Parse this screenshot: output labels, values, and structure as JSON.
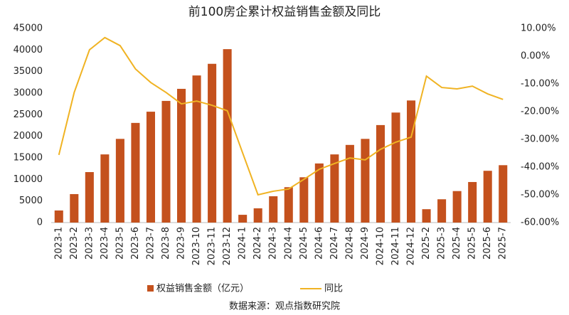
{
  "chart_data": {
    "type": "bar_line",
    "title": "前100房企累计权益销售金额及同比",
    "categories": [
      "2023-1",
      "2023-2",
      "2023-3",
      "2023-4",
      "2023-5",
      "2023-6",
      "2023-7",
      "2023-8",
      "2023-9",
      "2023-10",
      "2023-11",
      "2023-12",
      "2024-1",
      "2024-2",
      "2024-3",
      "2024-4",
      "2024-5",
      "2024-6",
      "2024-7",
      "2024-8",
      "2024-9",
      "2024-10",
      "2024-11",
      "2024-12",
      "2025-2",
      "2025-3",
      "2025-4",
      "2025-5",
      "2025-6",
      "2025-7"
    ],
    "series": [
      {
        "name": "权益销售金额（亿元）",
        "type": "bar",
        "axis": "y",
        "color": "#c4511d",
        "values": [
          2800,
          6600,
          11700,
          15800,
          19400,
          23100,
          25700,
          28200,
          31000,
          34100,
          36800,
          40200,
          1800,
          3300,
          6100,
          8200,
          10500,
          13700,
          15800,
          18000,
          19400,
          22600,
          25500,
          28300,
          3100,
          5400,
          7300,
          9400,
          12000,
          13300
        ]
      },
      {
        "name": "同比",
        "type": "line",
        "axis": "y2",
        "color": "#f0b323",
        "values": [
          -35.6,
          -13.1,
          2.3,
          6.7,
          3.8,
          -4.6,
          -9.5,
          -13.1,
          -17.2,
          -16.2,
          -17.7,
          -19.7,
          -34.9,
          -50.0,
          -48.7,
          -47.9,
          -44.4,
          -40.8,
          -38.7,
          -36.7,
          -37.4,
          -33.6,
          -31.0,
          -29.2,
          -7.2,
          -11.3,
          -11.8,
          -10.8,
          -13.6,
          -15.6
        ]
      }
    ],
    "ylim": [
      0,
      45000
    ],
    "yticks": [
      0,
      5000,
      10000,
      15000,
      20000,
      25000,
      30000,
      35000,
      40000,
      45000
    ],
    "y2lim": [
      -60,
      10
    ],
    "y2ticks": [
      {
        "value": -60,
        "label": "-60.00%"
      },
      {
        "value": -50,
        "label": "-50.00%"
      },
      {
        "value": -40,
        "label": "-40.00%"
      },
      {
        "value": -30,
        "label": "-30.00%"
      },
      {
        "value": -20,
        "label": "-20.00%"
      },
      {
        "value": -10,
        "label": "-10.00%"
      },
      {
        "value": 0,
        "label": "0.00%"
      },
      {
        "value": 10,
        "label": "10.00%"
      }
    ],
    "grid": false,
    "legend": "bottom",
    "source": "数据来源：观点指数研究院"
  }
}
